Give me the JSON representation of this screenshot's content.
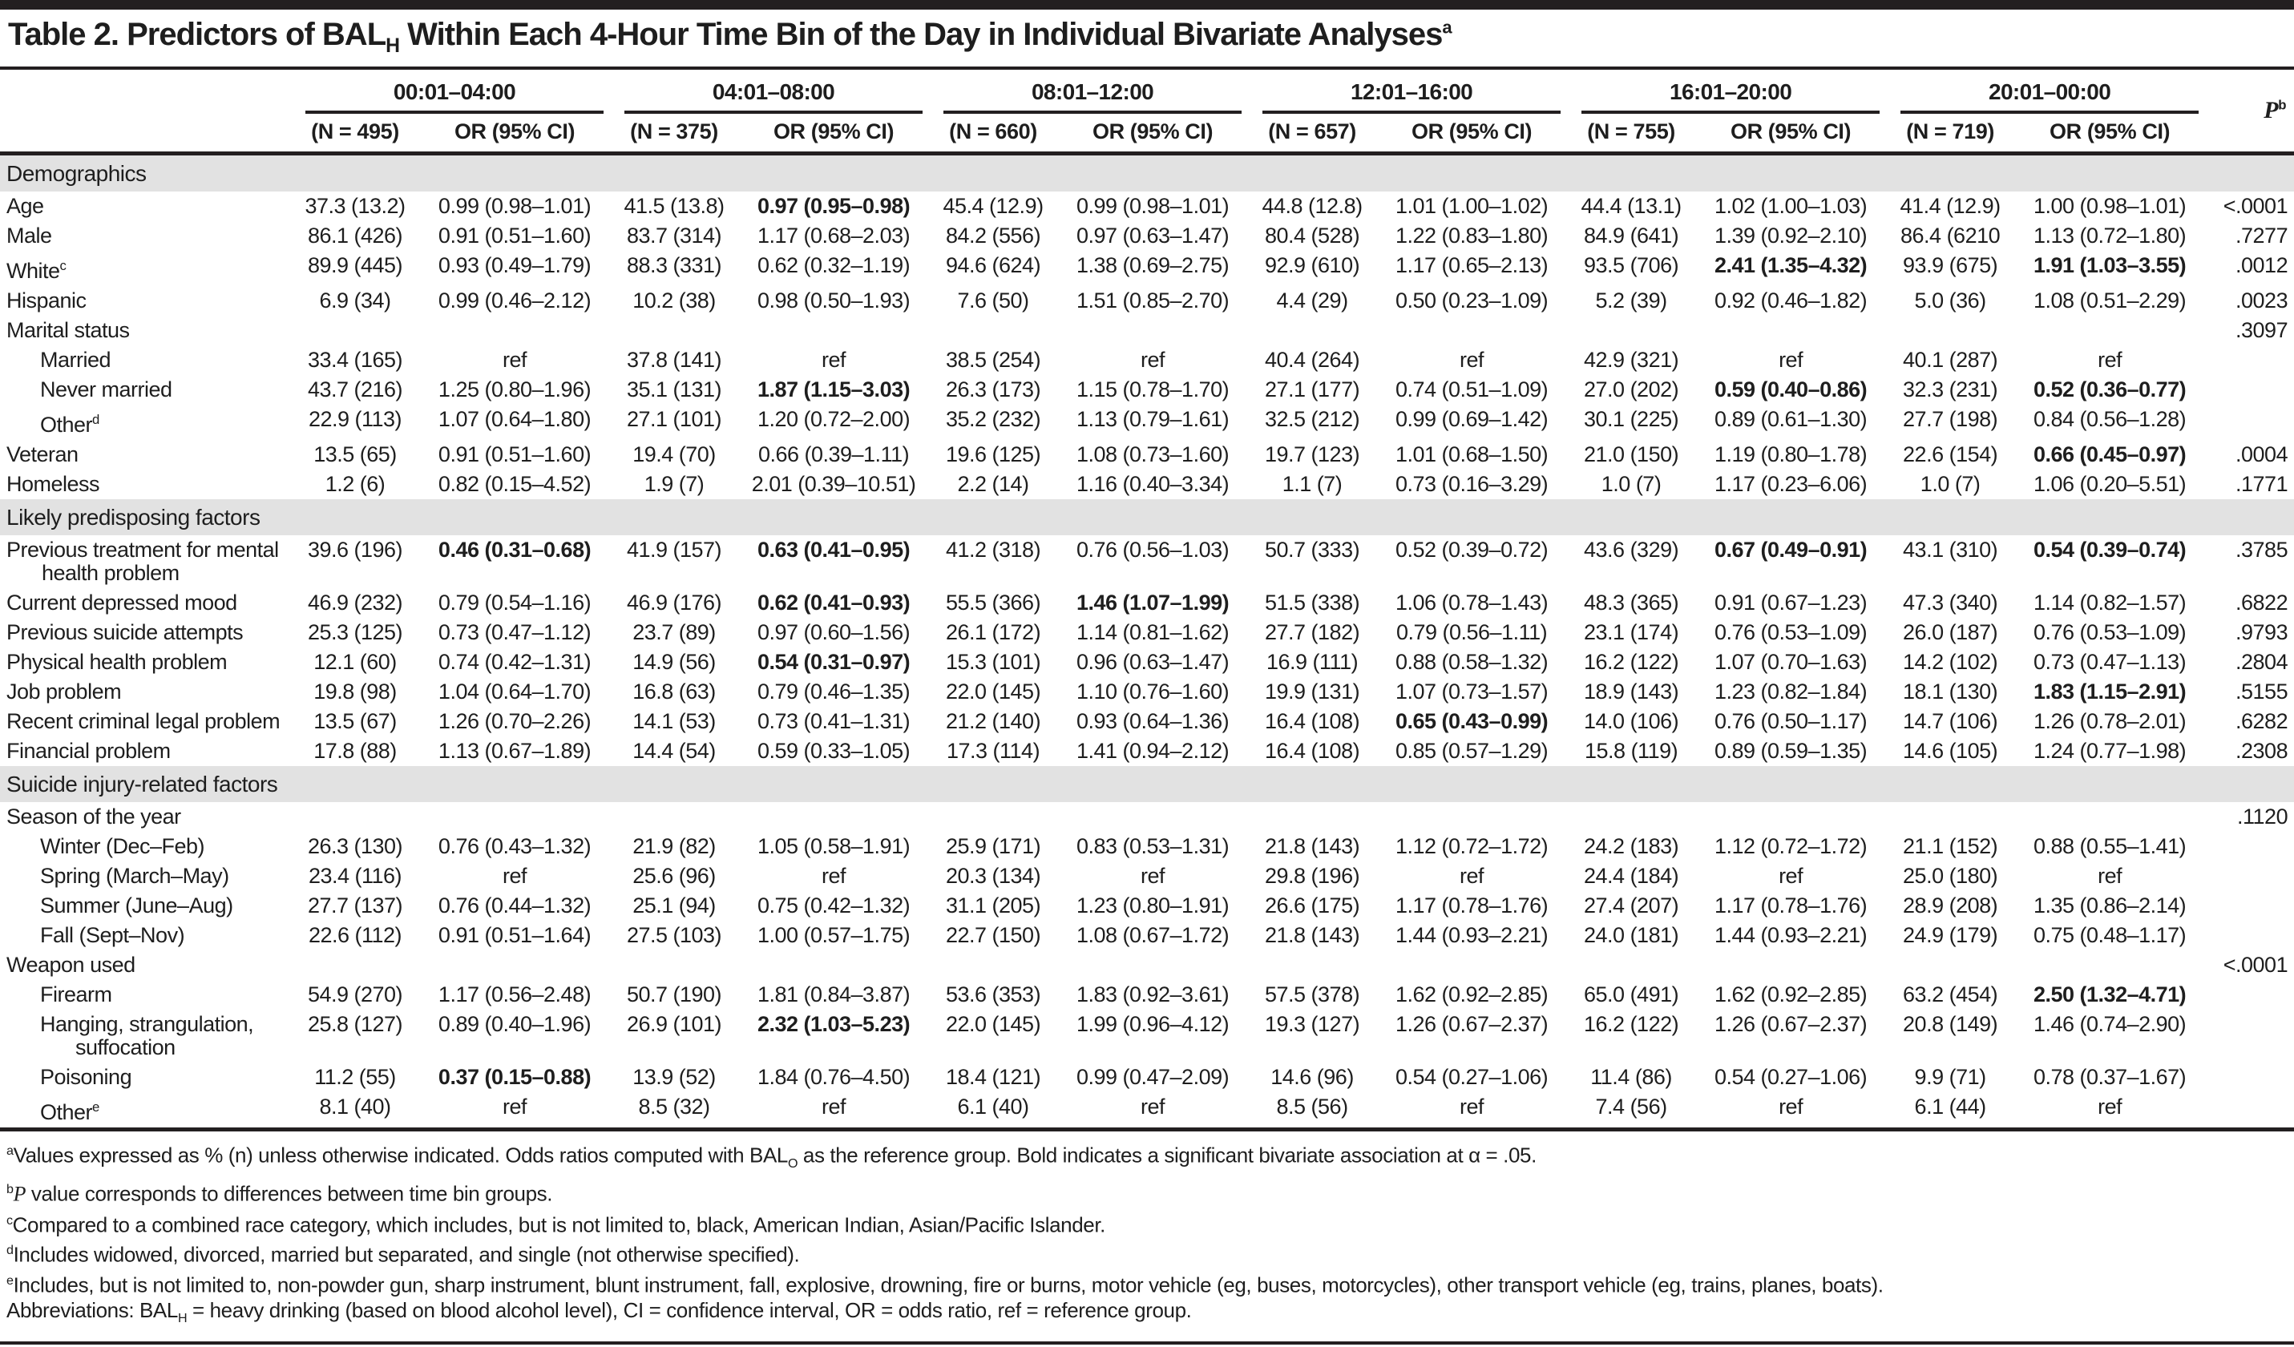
{
  "title": {
    "parts": [
      {
        "t": "Table 2. Predictors of BAL"
      },
      {
        "t": "H",
        "s": "sub"
      },
      {
        "t": " Within Each 4-Hour Time Bin of the Day in Individual Bivariate Analyses"
      },
      {
        "t": "a",
        "s": "sup"
      }
    ]
  },
  "header": {
    "or_label": "OR (95% CI)",
    "p_label": {
      "text": "P",
      "sup": "b"
    },
    "time_bins": [
      {
        "range": "00:01–04:00",
        "n": "(N = 495)"
      },
      {
        "range": "04:01–08:00",
        "n": "(N = 375)"
      },
      {
        "range": "08:01–12:00",
        "n": "(N = 660)"
      },
      {
        "range": "12:01–16:00",
        "n": "(N = 657)"
      },
      {
        "range": "16:01–20:00",
        "n": "(N = 755)"
      },
      {
        "range": "20:01–00:00",
        "n": "(N = 719)"
      }
    ]
  },
  "rows": [
    {
      "kind": "section",
      "label": "Demographics"
    },
    {
      "kind": "data",
      "label": "Age",
      "cells": [
        "37.3 (13.2)",
        "0.99 (0.98–1.01)",
        "41.5 (13.8)",
        {
          "v": "0.97 (0.95–0.98)",
          "b": true
        },
        "45.4 (12.9)",
        "0.99 (0.98–1.01)",
        "44.8 (12.8)",
        "1.01 (1.00–1.02)",
        "44.4 (13.1)",
        "1.02 (1.00–1.03)",
        "41.4 (12.9)",
        "1.00 (0.98–1.01)"
      ],
      "p": "<.0001"
    },
    {
      "kind": "data",
      "label": "Male",
      "cells": [
        "86.1 (426)",
        "0.91 (0.51–1.60)",
        "83.7 (314)",
        "1.17 (0.68–2.03)",
        "84.2 (556)",
        "0.97 (0.63–1.47)",
        "80.4 (528)",
        "1.22 (0.83–1.80)",
        "84.9 (641)",
        "1.39 (0.92–2.10)",
        "86.4 (6210",
        "1.13 (0.72–1.80)"
      ],
      "p": ".7277"
    },
    {
      "kind": "data",
      "label": "White",
      "sup": "c",
      "cells": [
        "89.9 (445)",
        "0.93 (0.49–1.79)",
        "88.3 (331)",
        "0.62 (0.32–1.19)",
        "94.6 (624)",
        "1.38 (0.69–2.75)",
        "92.9 (610)",
        "1.17 (0.65–2.13)",
        "93.5 (706)",
        {
          "v": "2.41 (1.35–4.32)",
          "b": true
        },
        "93.9 (675)",
        {
          "v": "1.91 (1.03–3.55)",
          "b": true
        }
      ],
      "p": ".0012"
    },
    {
      "kind": "data",
      "label": "Hispanic",
      "cells": [
        "6.9 (34)",
        "0.99 (0.46–2.12)",
        "10.2 (38)",
        "0.98 (0.50–1.93)",
        "7.6 (50)",
        "1.51 (0.85–2.70)",
        "4.4 (29)",
        "0.50 (0.23–1.09)",
        "5.2 (39)",
        "0.92 (0.46–1.82)",
        "5.0 (36)",
        "1.08 (0.51–2.29)"
      ],
      "p": ".0023"
    },
    {
      "kind": "group",
      "label": "Marital status",
      "p": ".3097"
    },
    {
      "kind": "data",
      "indent": true,
      "label": "Married",
      "cells": [
        "33.4 (165)",
        "ref",
        "37.8 (141)",
        "ref",
        "38.5 (254)",
        "ref",
        "40.4 (264)",
        "ref",
        "42.9 (321)",
        "ref",
        "40.1 (287)",
        "ref"
      ],
      "p": ""
    },
    {
      "kind": "data",
      "indent": true,
      "label": "Never married",
      "cells": [
        "43.7 (216)",
        "1.25 (0.80–1.96)",
        "35.1 (131)",
        {
          "v": "1.87 (1.15–3.03)",
          "b": true
        },
        "26.3 (173)",
        "1.15 (0.78–1.70)",
        "27.1 (177)",
        "0.74 (0.51–1.09)",
        "27.0 (202)",
        {
          "v": "0.59 (0.40–0.86)",
          "b": true
        },
        "32.3 (231)",
        {
          "v": "0.52 (0.36–0.77)",
          "b": true
        }
      ],
      "p": ""
    },
    {
      "kind": "data",
      "indent": true,
      "label": "Other",
      "sup": "d",
      "cells": [
        "22.9 (113)",
        "1.07 (0.64–1.80)",
        "27.1 (101)",
        "1.20 (0.72–2.00)",
        "35.2 (232)",
        "1.13 (0.79–1.61)",
        "32.5 (212)",
        "0.99 (0.69–1.42)",
        "30.1 (225)",
        "0.89 (0.61–1.30)",
        "27.7 (198)",
        "0.84 (0.56–1.28)"
      ],
      "p": ""
    },
    {
      "kind": "data",
      "label": "Veteran",
      "cells": [
        "13.5 (65)",
        "0.91 (0.51–1.60)",
        "19.4 (70)",
        "0.66 (0.39–1.11)",
        "19.6 (125)",
        "1.08 (0.73–1.60)",
        "19.7 (123)",
        "1.01 (0.68–1.50)",
        "21.0 (150)",
        "1.19 (0.80–1.78)",
        "22.6 (154)",
        {
          "v": "0.66 (0.45–0.97)",
          "b": true
        }
      ],
      "p": ".0004"
    },
    {
      "kind": "data",
      "label": "Homeless",
      "cells": [
        "1.2 (6)",
        "0.82 (0.15–4.52)",
        "1.9 (7)",
        "2.01 (0.39–10.51)",
        "2.2 (14)",
        "1.16 (0.40–3.34)",
        "1.1 (7)",
        "0.73 (0.16–3.29)",
        "1.0 (7)",
        "1.17 (0.23–6.06)",
        "1.0 (7)",
        "1.06 (0.20–5.51)"
      ],
      "p": ".1771"
    },
    {
      "kind": "section",
      "label": "Likely predisposing factors"
    },
    {
      "kind": "data",
      "label": "Previous treatment for mental health problem",
      "cells": [
        "39.6 (196)",
        {
          "v": "0.46 (0.31–0.68)",
          "b": true
        },
        "41.9 (157)",
        {
          "v": "0.63 (0.41–0.95)",
          "b": true
        },
        "41.2 (318)",
        "0.76 (0.56–1.03)",
        "50.7 (333)",
        "0.52 (0.39–0.72)",
        "43.6 (329)",
        {
          "v": "0.67 (0.49–0.91)",
          "b": true
        },
        "43.1 (310)",
        {
          "v": "0.54 (0.39–0.74)",
          "b": true
        }
      ],
      "p": ".3785"
    },
    {
      "kind": "data",
      "label": "Current depressed mood",
      "cells": [
        "46.9 (232)",
        "0.79 (0.54–1.16)",
        "46.9 (176)",
        {
          "v": "0.62 (0.41–0.93)",
          "b": true
        },
        "55.5 (366)",
        {
          "v": "1.46 (1.07–1.99)",
          "b": true
        },
        "51.5 (338)",
        "1.06 (0.78–1.43)",
        "48.3 (365)",
        "0.91 (0.67–1.23)",
        "47.3 (340)",
        "1.14 (0.82–1.57)"
      ],
      "p": ".6822"
    },
    {
      "kind": "data",
      "label": "Previous suicide attempts",
      "cells": [
        "25.3 (125)",
        "0.73 (0.47–1.12)",
        "23.7 (89)",
        "0.97 (0.60–1.56)",
        "26.1 (172)",
        "1.14 (0.81–1.62)",
        "27.7 (182)",
        "0.79 (0.56–1.11)",
        "23.1 (174)",
        "0.76 (0.53–1.09)",
        "26.0 (187)",
        "0.76 (0.53–1.09)"
      ],
      "p": ".9793"
    },
    {
      "kind": "data",
      "label": "Physical health problem",
      "cells": [
        "12.1 (60)",
        "0.74 (0.42–1.31)",
        "14.9 (56)",
        {
          "v": "0.54 (0.31–0.97)",
          "b": true
        },
        "15.3 (101)",
        "0.96 (0.63–1.47)",
        "16.9 (111)",
        "0.88 (0.58–1.32)",
        "16.2 (122)",
        "1.07 (0.70–1.63)",
        "14.2 (102)",
        "0.73 (0.47–1.13)"
      ],
      "p": ".2804"
    },
    {
      "kind": "data",
      "label": "Job problem",
      "cells": [
        "19.8 (98)",
        "1.04 (0.64–1.70)",
        "16.8 (63)",
        "0.79 (0.46–1.35)",
        "22.0 (145)",
        "1.10 (0.76–1.60)",
        "19.9 (131)",
        "1.07 (0.73–1.57)",
        "18.9 (143)",
        "1.23 (0.82–1.84)",
        "18.1 (130)",
        {
          "v": "1.83 (1.15–2.91)",
          "b": true
        }
      ],
      "p": ".5155"
    },
    {
      "kind": "data",
      "label": "Recent criminal legal problem",
      "cells": [
        "13.5 (67)",
        "1.26 (0.70–2.26)",
        "14.1 (53)",
        "0.73 (0.41–1.31)",
        "21.2 (140)",
        "0.93 (0.64–1.36)",
        "16.4 (108)",
        {
          "v": "0.65 (0.43–0.99)",
          "b": true
        },
        "14.0 (106)",
        "0.76 (0.50–1.17)",
        "14.7 (106)",
        "1.26 (0.78–2.01)"
      ],
      "p": ".6282"
    },
    {
      "kind": "data",
      "label": "Financial problem",
      "cells": [
        "17.8 (88)",
        "1.13 (0.67–1.89)",
        "14.4 (54)",
        "0.59 (0.33–1.05)",
        "17.3 (114)",
        "1.41 (0.94–2.12)",
        "16.4 (108)",
        "0.85 (0.57–1.29)",
        "15.8 (119)",
        "0.89 (0.59–1.35)",
        "14.6 (105)",
        "1.24 (0.77–1.98)"
      ],
      "p": ".2308"
    },
    {
      "kind": "section",
      "label": "Suicide injury-related factors"
    },
    {
      "kind": "group",
      "label": "Season of the year",
      "p": ".1120"
    },
    {
      "kind": "data",
      "indent": true,
      "label": "Winter (Dec–Feb)",
      "cells": [
        "26.3 (130)",
        "0.76 (0.43–1.32)",
        "21.9 (82)",
        "1.05 (0.58–1.91)",
        "25.9 (171)",
        "0.83 (0.53–1.31)",
        "21.8 (143)",
        "1.12 (0.72–1.72)",
        "24.2 (183)",
        "1.12 (0.72–1.72)",
        "21.1 (152)",
        "0.88 (0.55–1.41)"
      ],
      "p": ""
    },
    {
      "kind": "data",
      "indent": true,
      "label": "Spring (March–May)",
      "cells": [
        "23.4 (116)",
        "ref",
        "25.6 (96)",
        "ref",
        "20.3 (134)",
        "ref",
        "29.8 (196)",
        "ref",
        "24.4 (184)",
        "ref",
        "25.0 (180)",
        "ref"
      ],
      "p": ""
    },
    {
      "kind": "data",
      "indent": true,
      "label": "Summer (June–Aug)",
      "cells": [
        "27.7 (137)",
        "0.76 (0.44–1.32)",
        "25.1 (94)",
        "0.75 (0.42–1.32)",
        "31.1 (205)",
        "1.23 (0.80–1.91)",
        "26.6 (175)",
        "1.17 (0.78–1.76)",
        "27.4 (207)",
        "1.17 (0.78–1.76)",
        "28.9 (208)",
        "1.35 (0.86–2.14)"
      ],
      "p": ""
    },
    {
      "kind": "data",
      "indent": true,
      "label": "Fall (Sept–Nov)",
      "cells": [
        "22.6 (112)",
        "0.91 (0.51–1.64)",
        "27.5 (103)",
        "1.00 (0.57–1.75)",
        "22.7 (150)",
        "1.08 (0.67–1.72)",
        "21.8 (143)",
        "1.44 (0.93–2.21)",
        "24.0 (181)",
        "1.44 (0.93–2.21)",
        "24.9 (179)",
        "0.75 (0.48–1.17)"
      ],
      "p": ""
    },
    {
      "kind": "group",
      "label": "Weapon used",
      "p": "<.0001"
    },
    {
      "kind": "data",
      "indent": true,
      "label": "Firearm",
      "cells": [
        "54.9 (270)",
        "1.17 (0.56–2.48)",
        "50.7 (190)",
        "1.81 (0.84–3.87)",
        "53.6 (353)",
        "1.83 (0.92–3.61)",
        "57.5 (378)",
        "1.62 (0.92–2.85)",
        "65.0 (491)",
        "1.62 (0.92–2.85)",
        "63.2 (454)",
        {
          "v": "2.50 (1.32–4.71)",
          "b": true
        }
      ],
      "p": ""
    },
    {
      "kind": "data",
      "indent": true,
      "label": "Hanging, strangulation, suffocation",
      "cells": [
        "25.8 (127)",
        "0.89 (0.40–1.96)",
        "26.9 (101)",
        {
          "v": "2.32 (1.03–5.23)",
          "b": true
        },
        "22.0 (145)",
        "1.99 (0.96–4.12)",
        "19.3 (127)",
        "1.26 (0.67–2.37)",
        "16.2 (122)",
        "1.26 (0.67–2.37)",
        "20.8 (149)",
        "1.46 (0.74–2.90)"
      ],
      "p": ""
    },
    {
      "kind": "data",
      "indent": true,
      "label": "Poisoning",
      "cells": [
        "11.2 (55)",
        {
          "v": "0.37 (0.15–0.88)",
          "b": true
        },
        "13.9 (52)",
        "1.84 (0.76–4.50)",
        "18.4 (121)",
        "0.99 (0.47–2.09)",
        "14.6 (96)",
        "0.54 (0.27–1.06)",
        "11.4 (86)",
        "0.54 (0.27–1.06)",
        "9.9 (71)",
        "0.78 (0.37–1.67)"
      ],
      "p": ""
    },
    {
      "kind": "data",
      "indent": true,
      "label": "Other",
      "sup": "e",
      "cells": [
        "8.1 (40)",
        "ref",
        "8.5 (32)",
        "ref",
        "6.1 (40)",
        "ref",
        "8.5 (56)",
        "ref",
        "7.4 (56)",
        "ref",
        "6.1 (44)",
        "ref"
      ],
      "p": ""
    }
  ],
  "footnotes": [
    {
      "sup": "a",
      "parts": [
        {
          "t": "Values expressed as % (n) unless otherwise indicated. Odds ratios computed with BAL"
        },
        {
          "t": "O",
          "s": "sub"
        },
        {
          "t": " as the reference group. Bold indicates a significant bivariate association at α = .05."
        }
      ]
    },
    {
      "sup": "b",
      "parts": [
        {
          "t": "P",
          "s": "i"
        },
        {
          "t": " value corresponds to differences between time bin groups."
        }
      ]
    },
    {
      "sup": "c",
      "parts": [
        {
          "t": "Compared to a combined race category, which includes, but is not limited to, black, American Indian, Asian/Pacific Islander."
        }
      ]
    },
    {
      "sup": "d",
      "parts": [
        {
          "t": "Includes widowed, divorced, married but separated, and single (not otherwise specified)."
        }
      ]
    },
    {
      "sup": "e",
      "parts": [
        {
          "t": "Includes, but is not limited to, non-powder gun, sharp instrument, blunt instrument, fall, explosive, drowning, fire or burns, motor vehicle (eg, buses, motorcycles), other transport vehicle (eg, trains, planes, boats)."
        }
      ]
    },
    {
      "sup": "",
      "parts": [
        {
          "t": "Abbreviations: BAL"
        },
        {
          "t": "H",
          "s": "sub"
        },
        {
          "t": " = heavy drinking (based on blood alcohol level), CI = confidence interval, OR = odds ratio, ref = reference group."
        }
      ]
    }
  ],
  "colors": {
    "section_bg": "#e2e2e2",
    "text": "#1e1e1e",
    "border": "#231f20"
  }
}
